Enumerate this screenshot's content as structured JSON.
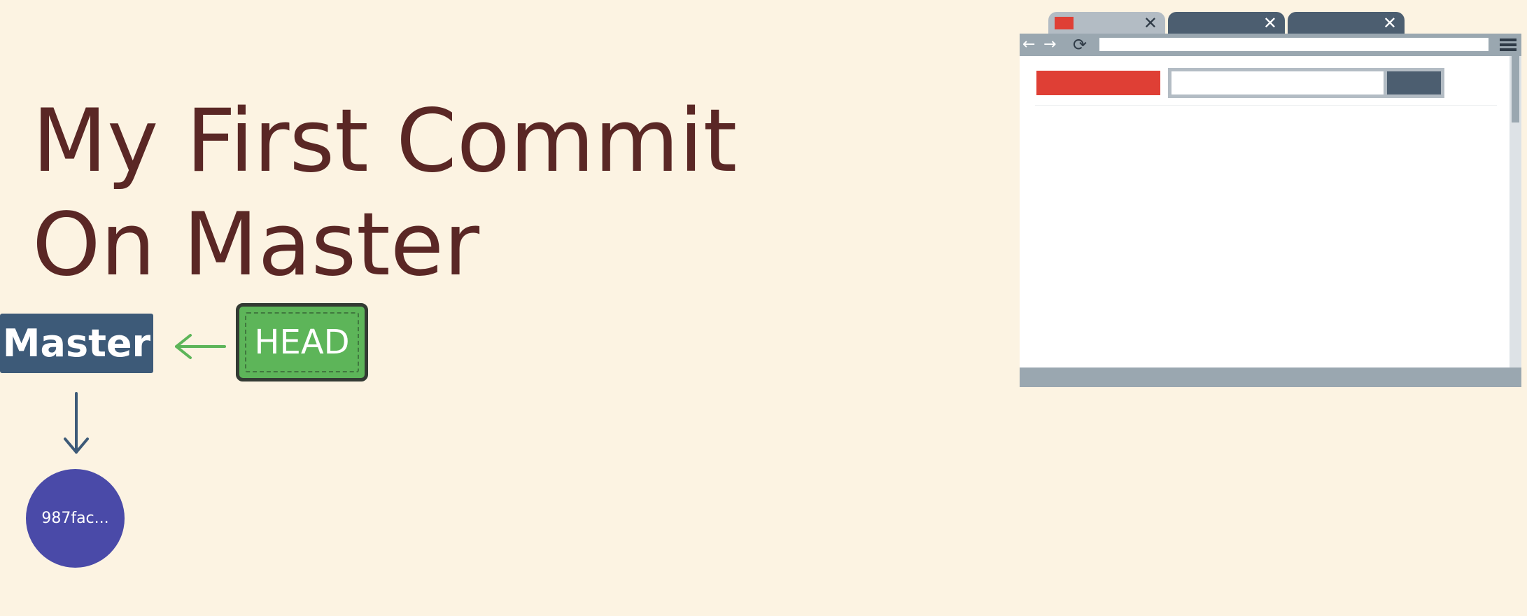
{
  "slide": {
    "title_lines": [
      "My First Commit",
      "On Master"
    ],
    "branch_label": "Master",
    "head_label": "HEAD",
    "commit_label": "987fac..."
  },
  "browser": {
    "tabs": [
      {
        "state": "active",
        "icon": "red-favicon",
        "close": "✕"
      },
      {
        "state": "inactive",
        "close": "✕"
      },
      {
        "state": "inactive",
        "close": "✕"
      }
    ],
    "toolbar": {
      "back_icon": "←",
      "forward_icon": "→",
      "reload_icon": "⟳"
    }
  },
  "colors": {
    "background": "#fcf3e2",
    "title": "#5a2725",
    "branch": "#3d5a78",
    "head": "#5db559",
    "commit": "#4a4aa8",
    "arrow_green": "#5db559",
    "arrow_blue": "#3d5a78",
    "browser_accent": "#df3f35",
    "browser_dark": "#4c5e70",
    "browser_gray": "#9aa7b0"
  }
}
